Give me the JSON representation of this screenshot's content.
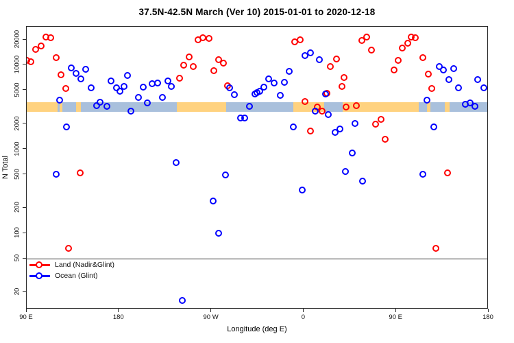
{
  "title": "37.5N-42.5N March (Ver 10)  2015-01-01 to 2020-12-18",
  "chart_data": {
    "type": "scatter",
    "title": "37.5N-42.5N March (Ver 10)  2015-01-01 to 2020-12-18",
    "xlabel": "Longitude (deg E)",
    "ylabel": "N Total",
    "x_axis": {
      "min": 90,
      "max": 540,
      "note": "longitude shown wrapping eastward from 90E through 180, 90W, 0, 90E to 180",
      "ticks": [
        {
          "value": 90,
          "label": "90 E"
        },
        {
          "value": 180,
          "label": "180"
        },
        {
          "value": 270,
          "label": "90 W"
        },
        {
          "value": 360,
          "label": "0"
        },
        {
          "value": 450,
          "label": "90 E"
        },
        {
          "value": 540,
          "label": "180"
        }
      ]
    },
    "y_axis": {
      "scale": "log",
      "min": 12.5,
      "max": 28600,
      "grid": false,
      "ticks": [
        20,
        50,
        100,
        200,
        500,
        1000,
        2000,
        5000,
        10000,
        20000
      ]
    },
    "hline_value": 50,
    "land_ocean_band": {
      "value_top": 3600,
      "value_bottom": 2800,
      "ocean_color": "#a9c0dc",
      "land_color": "#ffd27f",
      "land_segments_deg": [
        [
          90,
          120
        ],
        [
          122,
          125
        ],
        [
          138,
          143
        ],
        [
          236,
          284
        ],
        [
          350,
          380
        ],
        [
          398,
          472
        ],
        [
          480,
          483
        ],
        [
          497,
          502
        ]
      ]
    },
    "legend_position": "bottom-left",
    "series": [
      {
        "name": "Land (Nadir&Glint)",
        "color": "#ff0000",
        "marker": "open-circle",
        "points": [
          [
            90,
            11400
          ],
          [
            94,
            11000
          ],
          [
            98.7,
            15500
          ],
          [
            104,
            17000
          ],
          [
            108.7,
            21500
          ],
          [
            113.3,
            21000
          ],
          [
            118.7,
            12400
          ],
          [
            123.3,
            7700
          ],
          [
            128,
            5300
          ],
          [
            130.7,
            66
          ],
          [
            142,
            520
          ],
          [
            238.7,
            7000
          ],
          [
            242.7,
            10000
          ],
          [
            248,
            12500
          ],
          [
            252,
            9600
          ],
          [
            256.7,
            20200
          ],
          [
            261.3,
            21000
          ],
          [
            267.3,
            20600
          ],
          [
            272,
            8600
          ],
          [
            276.7,
            11600
          ],
          [
            281.3,
            10500
          ],
          [
            285.3,
            5700
          ],
          [
            351.3,
            18800
          ],
          [
            356.7,
            19900
          ],
          [
            361.3,
            3670
          ],
          [
            366.7,
            1650
          ],
          [
            373.3,
            3150
          ],
          [
            378,
            2820
          ],
          [
            382.7,
            4670
          ],
          [
            386,
            9700
          ],
          [
            392,
            11800
          ],
          [
            397.1,
            5550
          ],
          [
            399.3,
            7100
          ],
          [
            401.3,
            3150
          ],
          [
            411.3,
            3330
          ],
          [
            416.7,
            19500
          ],
          [
            421.3,
            21500
          ],
          [
            426,
            15000
          ],
          [
            430,
            2000
          ],
          [
            435.3,
            2270
          ],
          [
            439.3,
            1320
          ],
          [
            448,
            8800
          ],
          [
            452,
            11400
          ],
          [
            456,
            15900
          ],
          [
            461.3,
            18100
          ],
          [
            464.7,
            21500
          ],
          [
            468.7,
            21100
          ],
          [
            476,
            12300
          ],
          [
            481.3,
            7900
          ],
          [
            484.7,
            5300
          ],
          [
            488.7,
            66
          ],
          [
            500,
            520
          ]
        ]
      },
      {
        "name": "Ocean (Glint)",
        "color": "#0000ff",
        "marker": "open-circle",
        "points": [
          [
            118.7,
            505
          ],
          [
            122,
            3850
          ],
          [
            128.7,
            1850
          ],
          [
            133.3,
            9300
          ],
          [
            138,
            8000
          ],
          [
            142.7,
            6900
          ],
          [
            147.3,
            8900
          ],
          [
            152.7,
            5350
          ],
          [
            158,
            3300
          ],
          [
            161.3,
            3600
          ],
          [
            168,
            3250
          ],
          [
            172,
            6500
          ],
          [
            177.3,
            5350
          ],
          [
            180.7,
            4900
          ],
          [
            184.7,
            5600
          ],
          [
            188,
            7500
          ],
          [
            191.3,
            2850
          ],
          [
            198.7,
            4100
          ],
          [
            203.3,
            5500
          ],
          [
            207.3,
            3550
          ],
          [
            212,
            6000
          ],
          [
            217.3,
            6100
          ],
          [
            222,
            4100
          ],
          [
            227.3,
            6500
          ],
          [
            230.7,
            5600
          ],
          [
            235.3,
            700
          ],
          [
            241.3,
            16
          ],
          [
            271.3,
            245
          ],
          [
            276.7,
            101
          ],
          [
            283.3,
            500
          ],
          [
            287.3,
            5350
          ],
          [
            292,
            4450
          ],
          [
            298,
            2350
          ],
          [
            302,
            2350
          ],
          [
            307.3,
            3250
          ],
          [
            312,
            4500
          ],
          [
            314,
            4700
          ],
          [
            316.7,
            4900
          ],
          [
            321.3,
            5500
          ],
          [
            326,
            6900
          ],
          [
            330.7,
            6100
          ],
          [
            336.7,
            4400
          ],
          [
            341.3,
            6200
          ],
          [
            346,
            8500
          ],
          [
            350,
            1860
          ],
          [
            358.7,
            330
          ],
          [
            361.3,
            13100
          ],
          [
            366.7,
            13900
          ],
          [
            371.3,
            2820
          ],
          [
            375.3,
            11600
          ],
          [
            381.3,
            4550
          ],
          [
            384,
            2600
          ],
          [
            390.7,
            1600
          ],
          [
            395.3,
            1740
          ],
          [
            400.7,
            545
          ],
          [
            407.3,
            900
          ],
          [
            410,
            2030
          ],
          [
            417.3,
            420
          ],
          [
            476,
            505
          ],
          [
            480,
            3850
          ],
          [
            486.7,
            1860
          ],
          [
            492,
            9700
          ],
          [
            496,
            8800
          ],
          [
            501.3,
            6800
          ],
          [
            506,
            9100
          ],
          [
            510.7,
            5350
          ],
          [
            517.3,
            3400
          ],
          [
            522,
            3550
          ],
          [
            526.7,
            3250
          ],
          [
            529.3,
            6700
          ],
          [
            535.3,
            5400
          ]
        ]
      }
    ]
  },
  "legend": {
    "items": [
      {
        "label": "Land (Nadir&Glint)",
        "color": "#ff0000"
      },
      {
        "label": "Ocean (Glint)",
        "color": "#0000ff"
      }
    ]
  }
}
